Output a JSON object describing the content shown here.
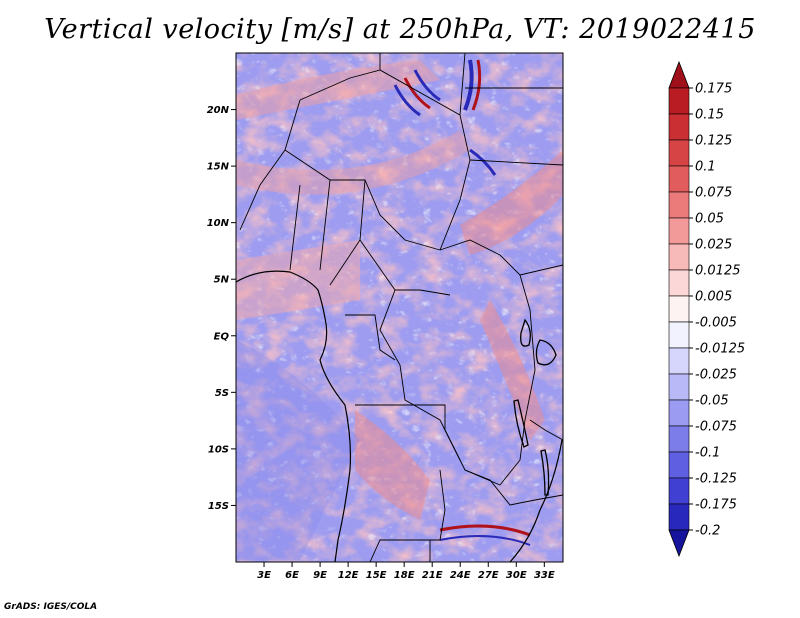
{
  "title": "Vertical velocity [m/s] at 250hPa, VT: 2019022415",
  "credit": "GrADS: IGES/COLA",
  "map": {
    "lon_range": [
      0,
      35
    ],
    "lat_range": [
      -20,
      25
    ],
    "lat_ticks": [
      {
        "value": 20,
        "label": "20N"
      },
      {
        "value": 15,
        "label": "15N"
      },
      {
        "value": 10,
        "label": "10N"
      },
      {
        "value": 5,
        "label": "5N"
      },
      {
        "value": 0,
        "label": "EQ"
      },
      {
        "value": -5,
        "label": "5S"
      },
      {
        "value": -10,
        "label": "10S"
      },
      {
        "value": -15,
        "label": "15S"
      }
    ],
    "lon_ticks": [
      {
        "value": 3,
        "label": "3E"
      },
      {
        "value": 6,
        "label": "6E"
      },
      {
        "value": 9,
        "label": "9E"
      },
      {
        "value": 12,
        "label": "12E"
      },
      {
        "value": 15,
        "label": "15E"
      },
      {
        "value": 18,
        "label": "18E"
      },
      {
        "value": 21,
        "label": "21E"
      },
      {
        "value": 24,
        "label": "24E"
      },
      {
        "value": 27,
        "label": "27E"
      },
      {
        "value": 30,
        "label": "30E"
      },
      {
        "value": 33,
        "label": "33E"
      }
    ]
  },
  "colorbar": {
    "levels": [
      {
        "label": "0.175",
        "color": "#b0121b"
      },
      {
        "label": "0.15",
        "color": "#c4262b"
      },
      {
        "label": "0.125",
        "color": "#d0383a"
      },
      {
        "label": "0.1",
        "color": "#dc5050"
      },
      {
        "label": "0.075",
        "color": "#e66a6a"
      },
      {
        "label": "0.05",
        "color": "#ef8a8a"
      },
      {
        "label": "0.025",
        "color": "#f5a9a9"
      },
      {
        "label": "0.0125",
        "color": "#fac8c8"
      },
      {
        "label": "0.005",
        "color": "#fde6e6"
      },
      {
        "label": "-0.005",
        "color": "#ffffff"
      },
      {
        "label": "-0.0125",
        "color": "#e4e4ff"
      },
      {
        "label": "-0.025",
        "color": "#c8c8fa"
      },
      {
        "label": "-0.05",
        "color": "#aaaaf5"
      },
      {
        "label": "-0.075",
        "color": "#8c8cee"
      },
      {
        "label": "-0.1",
        "color": "#6e6ee6"
      },
      {
        "label": "-0.125",
        "color": "#5050dc"
      },
      {
        "label": "-0.175",
        "color": "#3030c8"
      },
      {
        "label": "-0.2",
        "color": "#2020b0"
      }
    ],
    "top_color": "#a0101a",
    "bottom_color": "#16149c"
  }
}
